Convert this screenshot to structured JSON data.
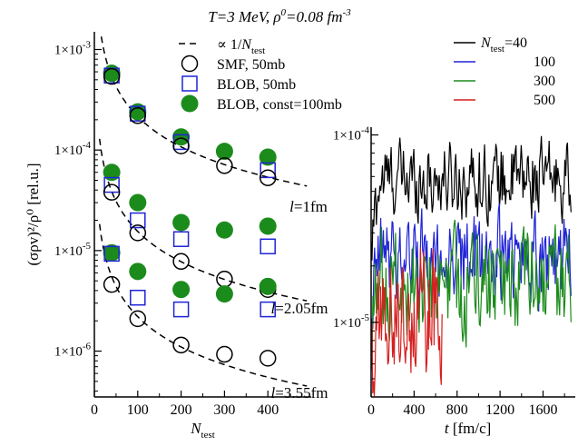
{
  "figure": {
    "title": "T=3 MeV, ρ0=0.08 fm-3"
  },
  "chart_data": [
    {
      "type": "scatter",
      "xlabel": "N_test",
      "ylabel": "(σρv)²/ρ⁰  [rel.u.]",
      "scale_y": "log",
      "xlim": [
        0,
        500
      ],
      "ylim": [
        3.5e-07,
        0.0015
      ],
      "x_ticks": [
        0,
        100,
        200,
        300,
        400
      ],
      "x_tick_labels": [
        "0",
        "100",
        "200",
        "300",
        "400"
      ],
      "y_ticks": [
        1e-06,
        1e-05,
        0.0001,
        0.001
      ],
      "y_tick_labels": [
        "1×10-6",
        "1×10-5",
        "1×10-4",
        "1×10-3"
      ],
      "legend_position": "top-right",
      "legend": [
        {
          "key": "fit",
          "label": "∝ 1/Ntest"
        },
        {
          "key": "smf",
          "label": "SMF, 50mb"
        },
        {
          "key": "blob",
          "label": "BLOB, 50mb"
        },
        {
          "key": "const",
          "label": "BLOB, const=100mb"
        }
      ],
      "groups": [
        {
          "l_label": "l=1fm",
          "fit_coeff": 0.0215,
          "smf": [
            [
              40,
              0.00054
            ],
            [
              100,
              0.00022
            ],
            [
              200,
              0.00011
            ],
            [
              300,
              7e-05
            ],
            [
              400,
              5.3e-05
            ]
          ],
          "blob": [
            [
              40,
              0.00055
            ],
            [
              100,
              0.00023
            ],
            [
              200,
              0.00012
            ],
            [
              300,
              0
            ],
            [
              400,
              6.3e-05
            ]
          ],
          "const": [
            [
              40,
              0.00058
            ],
            [
              100,
              0.00024
            ],
            [
              200,
              0.000135
            ],
            [
              300,
              9.7e-05
            ],
            [
              400,
              8.5e-05
            ]
          ]
        },
        {
          "l_label": "l=2.05fm",
          "fit_coeff": 0.00155,
          "smf": [
            [
              40,
              3.8e-05
            ],
            [
              100,
              1.5e-05
            ],
            [
              200,
              7.8e-06
            ],
            [
              300,
              5.2e-06
            ],
            [
              400,
              4.1e-06
            ]
          ],
          "blob": [
            [
              40,
              4.5e-05
            ],
            [
              100,
              2e-05
            ],
            [
              200,
              1.3e-05
            ],
            [
              300,
              0
            ],
            [
              400,
              1.1e-05
            ]
          ],
          "const": [
            [
              40,
              6e-05
            ],
            [
              100,
              3e-05
            ],
            [
              200,
              1.9e-05
            ],
            [
              300,
              1.6e-05
            ],
            [
              400,
              1.75e-05
            ]
          ]
        },
        {
          "l_label": "l=3.55fm",
          "fit_coeff": 0.00022,
          "smf": [
            [
              40,
              4.6e-06
            ],
            [
              100,
              2.1e-06
            ],
            [
              200,
              1.15e-06
            ],
            [
              300,
              9.3e-07
            ],
            [
              400,
              8.5e-07
            ]
          ],
          "blob": [
            [
              40,
              9.3e-06
            ],
            [
              100,
              3.4e-06
            ],
            [
              200,
              2.6e-06
            ],
            [
              300,
              0
            ],
            [
              400,
              2.6e-06
            ]
          ],
          "const": [
            [
              40,
              9.5e-06
            ],
            [
              100,
              6.2e-06
            ],
            [
              200,
              4.1e-06
            ],
            [
              300,
              3.7e-06
            ],
            [
              400,
              4.4e-06
            ]
          ]
        }
      ],
      "colors": {
        "blob": "#1f24d6",
        "const": "#1b8b1b",
        "smf": "#000000",
        "fit": "#000000"
      }
    },
    {
      "type": "line",
      "xlabel": "t [fm/c]",
      "scale_y": "log",
      "xlim": [
        0,
        1900
      ],
      "ylim": [
        4e-06,
        0.00011
      ],
      "x_ticks": [
        0,
        400,
        800,
        1200,
        1600
      ],
      "x_tick_labels": [
        "0",
        "400",
        "800",
        "1200",
        "1600"
      ],
      "y_ticks": [
        1e-05,
        0.0001
      ],
      "y_tick_labels": [
        "1×10-5",
        "1×10-4"
      ],
      "legend_position": "top-right",
      "series": [
        {
          "name": "Ntest=40",
          "label_prefix": "N",
          "label_sub": "test",
          "label_suffix": "=40",
          "color": "#000000",
          "x_range": [
            0,
            1860
          ],
          "base": 5.8e-05,
          "amp": 0.18,
          "points": 230,
          "start": 2e-05
        },
        {
          "name": "100",
          "color": "#1f24d6",
          "x_range": [
            0,
            1860
          ],
          "base": 2.2e-05,
          "amp": 0.22,
          "points": 230,
          "start": 8e-06
        },
        {
          "name": "300",
          "color": "#1b8b1b",
          "x_range": [
            0,
            1860
          ],
          "base": 1.6e-05,
          "amp": 0.25,
          "points": 230,
          "start": 7e-06
        },
        {
          "name": "500",
          "color": "#d61f1f",
          "x_range": [
            0,
            660
          ],
          "base": 1.15e-05,
          "amp": 0.3,
          "points": 90,
          "start": 6e-06
        }
      ]
    }
  ]
}
